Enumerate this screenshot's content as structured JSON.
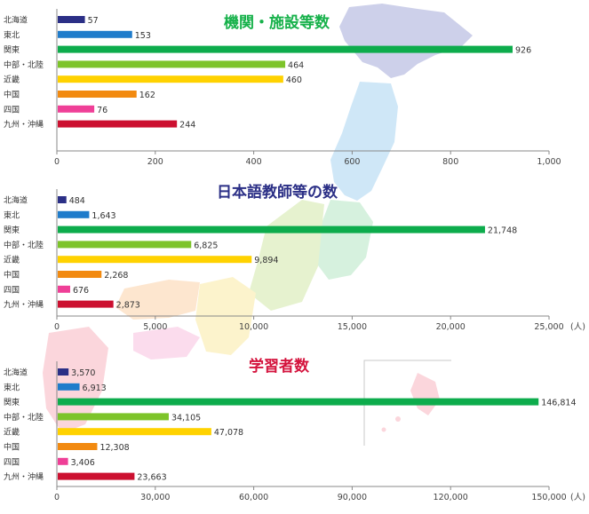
{
  "colors": {
    "categories": [
      "#2b2f86",
      "#1f7ccb",
      "#0dac4c",
      "#7dc42a",
      "#ffd200",
      "#f28a10",
      "#ef3f97",
      "#cc1030"
    ],
    "title1": "#16b14a",
    "title2": "#2b2f86",
    "title3": "#d4133d"
  },
  "chart_data": [
    {
      "type": "bar",
      "orientation": "horizontal",
      "title": "機関・施設等数",
      "categories": [
        "北海道",
        "東北",
        "関東",
        "中部・北陸",
        "近畿",
        "中国",
        "四国",
        "九州・沖縄"
      ],
      "values": [
        57,
        153,
        926,
        464,
        460,
        162,
        76,
        244
      ],
      "value_labels": [
        "57",
        "153",
        "926",
        "464",
        "460",
        "162",
        "76",
        "244"
      ],
      "xlim": [
        0,
        1000
      ],
      "ticks": [
        0,
        200,
        400,
        600,
        800,
        1000
      ],
      "tick_labels": [
        "0",
        "200",
        "400",
        "600",
        "800",
        "1,000"
      ],
      "unit": ""
    },
    {
      "type": "bar",
      "orientation": "horizontal",
      "title": "日本語教師等の数",
      "categories": [
        "北海道",
        "東北",
        "関東",
        "中部・北陸",
        "近畿",
        "中国",
        "四国",
        "九州・沖縄"
      ],
      "values": [
        484,
        1643,
        21748,
        6825,
        9894,
        2268,
        676,
        2873
      ],
      "value_labels": [
        "484",
        "1,643",
        "21,748",
        "6,825",
        "9,894",
        "2,268",
        "676",
        "2,873"
      ],
      "xlim": [
        0,
        25000
      ],
      "ticks": [
        0,
        5000,
        10000,
        15000,
        20000,
        25000
      ],
      "tick_labels": [
        "0",
        "5,000",
        "10,000",
        "15,000",
        "20,000",
        "25,000"
      ],
      "unit": "(人)"
    },
    {
      "type": "bar",
      "orientation": "horizontal",
      "title": "学習者数",
      "categories": [
        "北海道",
        "東北",
        "関東",
        "中部・北陸",
        "近畿",
        "中国",
        "四国",
        "九州・沖縄"
      ],
      "values": [
        3570,
        6913,
        146814,
        34105,
        47078,
        12308,
        3406,
        23663
      ],
      "value_labels": [
        "3,570",
        "6,913",
        "146,814",
        "34,105",
        "47,078",
        "12,308",
        "3,406",
        "23,663"
      ],
      "xlim": [
        0,
        150000
      ],
      "ticks": [
        0,
        30000,
        60000,
        90000,
        120000,
        150000
      ],
      "tick_labels": [
        "0",
        "30,000",
        "60,000",
        "90,000",
        "120,000",
        "150,000"
      ],
      "unit": "(人)"
    }
  ]
}
